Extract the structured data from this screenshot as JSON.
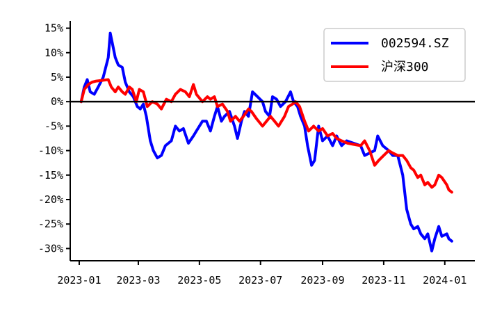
{
  "chart_data": {
    "type": "line",
    "title": "",
    "xlabel": "",
    "ylabel": "",
    "xlim": [
      "2022-12-23",
      "2024-01-31"
    ],
    "ylim": [
      -32.5,
      16.5
    ],
    "x_ticks": [
      "2023-01",
      "2023-03",
      "2023-05",
      "2023-07",
      "2023-09",
      "2023-11",
      "2024-01"
    ],
    "y_ticks": [
      15,
      10,
      5,
      0,
      -5,
      -10,
      -15,
      -20,
      -25,
      -30
    ],
    "y_tick_labels": [
      "15%",
      "10%",
      "5%",
      "0%",
      "-5%",
      "-10%",
      "-15%",
      "-20%",
      "-25%",
      "-30%"
    ],
    "reference_line": 0,
    "legend_position": "top-right",
    "grid": false,
    "series": [
      {
        "name": "002594.SZ",
        "color": "#0000ff",
        "points": [
          [
            "2023-01-03",
            0
          ],
          [
            "2023-01-06",
            3
          ],
          [
            "2023-01-09",
            4.5
          ],
          [
            "2023-01-12",
            2
          ],
          [
            "2023-01-16",
            1.5
          ],
          [
            "2023-01-20",
            3
          ],
          [
            "2023-01-25",
            5
          ],
          [
            "2023-01-30",
            9
          ],
          [
            "2023-02-01",
            14
          ],
          [
            "2023-02-03",
            12
          ],
          [
            "2023-02-06",
            9
          ],
          [
            "2023-02-09",
            7.5
          ],
          [
            "2023-02-13",
            7
          ],
          [
            "2023-02-16",
            4
          ],
          [
            "2023-02-20",
            2
          ],
          [
            "2023-02-24",
            1
          ],
          [
            "2023-02-28",
            -1
          ],
          [
            "2023-03-03",
            -1.5
          ],
          [
            "2023-03-06",
            -0.5
          ],
          [
            "2023-03-09",
            -3
          ],
          [
            "2023-03-13",
            -8
          ],
          [
            "2023-03-16",
            -10
          ],
          [
            "2023-03-20",
            -11.5
          ],
          [
            "2023-03-24",
            -11
          ],
          [
            "2023-03-28",
            -9
          ],
          [
            "2023-04-03",
            -8
          ],
          [
            "2023-04-07",
            -5
          ],
          [
            "2023-04-11",
            -6
          ],
          [
            "2023-04-15",
            -5.5
          ],
          [
            "2023-04-20",
            -8.5
          ],
          [
            "2023-04-25",
            -7
          ],
          [
            "2023-04-28",
            -6
          ],
          [
            "2023-05-04",
            -4
          ],
          [
            "2023-05-08",
            -4
          ],
          [
            "2023-05-12",
            -6
          ],
          [
            "2023-05-16",
            -3
          ],
          [
            "2023-05-19",
            -1
          ],
          [
            "2023-05-23",
            -4
          ],
          [
            "2023-05-26",
            -3
          ],
          [
            "2023-05-31",
            -2
          ],
          [
            "2023-06-05",
            -5
          ],
          [
            "2023-06-08",
            -7.5
          ],
          [
            "2023-06-12",
            -4
          ],
          [
            "2023-06-15",
            -2
          ],
          [
            "2023-06-19",
            -3
          ],
          [
            "2023-06-23",
            2
          ],
          [
            "2023-06-28",
            1
          ],
          [
            "2023-07-03",
            0
          ],
          [
            "2023-07-06",
            -2
          ],
          [
            "2023-07-10",
            -3
          ],
          [
            "2023-07-13",
            1
          ],
          [
            "2023-07-17",
            0.5
          ],
          [
            "2023-07-21",
            -1
          ],
          [
            "2023-07-26",
            0
          ],
          [
            "2023-07-31",
            2
          ],
          [
            "2023-08-03",
            0
          ],
          [
            "2023-08-07",
            -1
          ],
          [
            "2023-08-10",
            -3
          ],
          [
            "2023-08-14",
            -5
          ],
          [
            "2023-08-17",
            -9
          ],
          [
            "2023-08-21",
            -13
          ],
          [
            "2023-08-24",
            -12
          ],
          [
            "2023-08-28",
            -5
          ],
          [
            "2023-09-01",
            -8
          ],
          [
            "2023-09-06",
            -7
          ],
          [
            "2023-09-11",
            -9
          ],
          [
            "2023-09-15",
            -7
          ],
          [
            "2023-09-20",
            -9
          ],
          [
            "2023-09-25",
            -8
          ],
          [
            "2023-10-09",
            -9
          ],
          [
            "2023-10-13",
            -11
          ],
          [
            "2023-10-18",
            -10.5
          ],
          [
            "2023-10-23",
            -10
          ],
          [
            "2023-10-26",
            -7
          ],
          [
            "2023-10-31",
            -9
          ],
          [
            "2023-11-06",
            -10
          ],
          [
            "2023-11-10",
            -11
          ],
          [
            "2023-11-15",
            -11
          ],
          [
            "2023-11-20",
            -15
          ],
          [
            "2023-11-24",
            -22
          ],
          [
            "2023-11-28",
            -25
          ],
          [
            "2023-12-01",
            -26
          ],
          [
            "2023-12-05",
            -25.5
          ],
          [
            "2023-12-08",
            -27
          ],
          [
            "2023-12-12",
            -28
          ],
          [
            "2023-12-15",
            -27
          ],
          [
            "2023-12-19",
            -30.5
          ],
          [
            "2023-12-22",
            -28
          ],
          [
            "2023-12-26",
            -25.5
          ],
          [
            "2023-12-29",
            -27.5
          ],
          [
            "2024-01-03",
            -27
          ],
          [
            "2024-01-05",
            -28
          ],
          [
            "2024-01-08",
            -28.5
          ]
        ]
      },
      {
        "name": "沪深300",
        "color": "#ff0000",
        "points": [
          [
            "2023-01-03",
            0
          ],
          [
            "2023-01-06",
            2.5
          ],
          [
            "2023-01-10",
            3.5
          ],
          [
            "2023-01-14",
            4
          ],
          [
            "2023-01-18",
            4.2
          ],
          [
            "2023-01-30",
            4.5
          ],
          [
            "2023-02-02",
            3
          ],
          [
            "2023-02-06",
            2
          ],
          [
            "2023-02-09",
            3
          ],
          [
            "2023-02-13",
            2
          ],
          [
            "2023-02-16",
            1.5
          ],
          [
            "2023-02-20",
            3
          ],
          [
            "2023-02-23",
            2.5
          ],
          [
            "2023-02-27",
            0
          ],
          [
            "2023-03-02",
            2.5
          ],
          [
            "2023-03-06",
            2
          ],
          [
            "2023-03-10",
            -1
          ],
          [
            "2023-03-15",
            0
          ],
          [
            "2023-03-20",
            -0.5
          ],
          [
            "2023-03-24",
            -1.5
          ],
          [
            "2023-03-29",
            0.5
          ],
          [
            "2023-04-03",
            0
          ],
          [
            "2023-04-07",
            1.5
          ],
          [
            "2023-04-12",
            2.5
          ],
          [
            "2023-04-17",
            2
          ],
          [
            "2023-04-21",
            1
          ],
          [
            "2023-04-25",
            3.5
          ],
          [
            "2023-04-28",
            1.5
          ],
          [
            "2023-05-04",
            0
          ],
          [
            "2023-05-09",
            1
          ],
          [
            "2023-05-12",
            0.5
          ],
          [
            "2023-05-16",
            1
          ],
          [
            "2023-05-19",
            -1
          ],
          [
            "2023-05-24",
            -0.5
          ],
          [
            "2023-05-29",
            -2
          ],
          [
            "2023-06-01",
            -4
          ],
          [
            "2023-06-06",
            -3
          ],
          [
            "2023-06-10",
            -4
          ],
          [
            "2023-06-14",
            -3
          ],
          [
            "2023-06-19",
            -1.5
          ],
          [
            "2023-06-22",
            -2
          ],
          [
            "2023-06-27",
            -3.5
          ],
          [
            "2023-07-03",
            -5
          ],
          [
            "2023-07-07",
            -4
          ],
          [
            "2023-07-11",
            -3
          ],
          [
            "2023-07-15",
            -4
          ],
          [
            "2023-07-19",
            -5
          ],
          [
            "2023-07-25",
            -3
          ],
          [
            "2023-07-29",
            -1
          ],
          [
            "2023-08-02",
            -0.5
          ],
          [
            "2023-08-05",
            0
          ],
          [
            "2023-08-09",
            -1
          ],
          [
            "2023-08-14",
            -4
          ],
          [
            "2023-08-18",
            -6
          ],
          [
            "2023-08-23",
            -5
          ],
          [
            "2023-08-28",
            -6
          ],
          [
            "2023-09-01",
            -5.5
          ],
          [
            "2023-09-06",
            -7
          ],
          [
            "2023-09-11",
            -6.5
          ],
          [
            "2023-09-15",
            -7.5
          ],
          [
            "2023-09-20",
            -8
          ],
          [
            "2023-09-26",
            -8.5
          ],
          [
            "2023-10-09",
            -9
          ],
          [
            "2023-10-13",
            -8
          ],
          [
            "2023-10-18",
            -10
          ],
          [
            "2023-10-23",
            -13
          ],
          [
            "2023-10-27",
            -12
          ],
          [
            "2023-11-01",
            -11
          ],
          [
            "2023-11-06",
            -10
          ],
          [
            "2023-11-10",
            -10.5
          ],
          [
            "2023-11-15",
            -11
          ],
          [
            "2023-11-20",
            -11
          ],
          [
            "2023-11-24",
            -12
          ],
          [
            "2023-11-28",
            -13.5
          ],
          [
            "2023-12-01",
            -14
          ],
          [
            "2023-12-05",
            -15.5
          ],
          [
            "2023-12-08",
            -15
          ],
          [
            "2023-12-12",
            -17
          ],
          [
            "2023-12-15",
            -16.5
          ],
          [
            "2023-12-19",
            -17.5
          ],
          [
            "2023-12-22",
            -17
          ],
          [
            "2023-12-26",
            -15
          ],
          [
            "2023-12-29",
            -15.5
          ],
          [
            "2024-01-03",
            -17
          ],
          [
            "2024-01-05",
            -18
          ],
          [
            "2024-01-08",
            -18.5
          ]
        ]
      }
    ]
  }
}
